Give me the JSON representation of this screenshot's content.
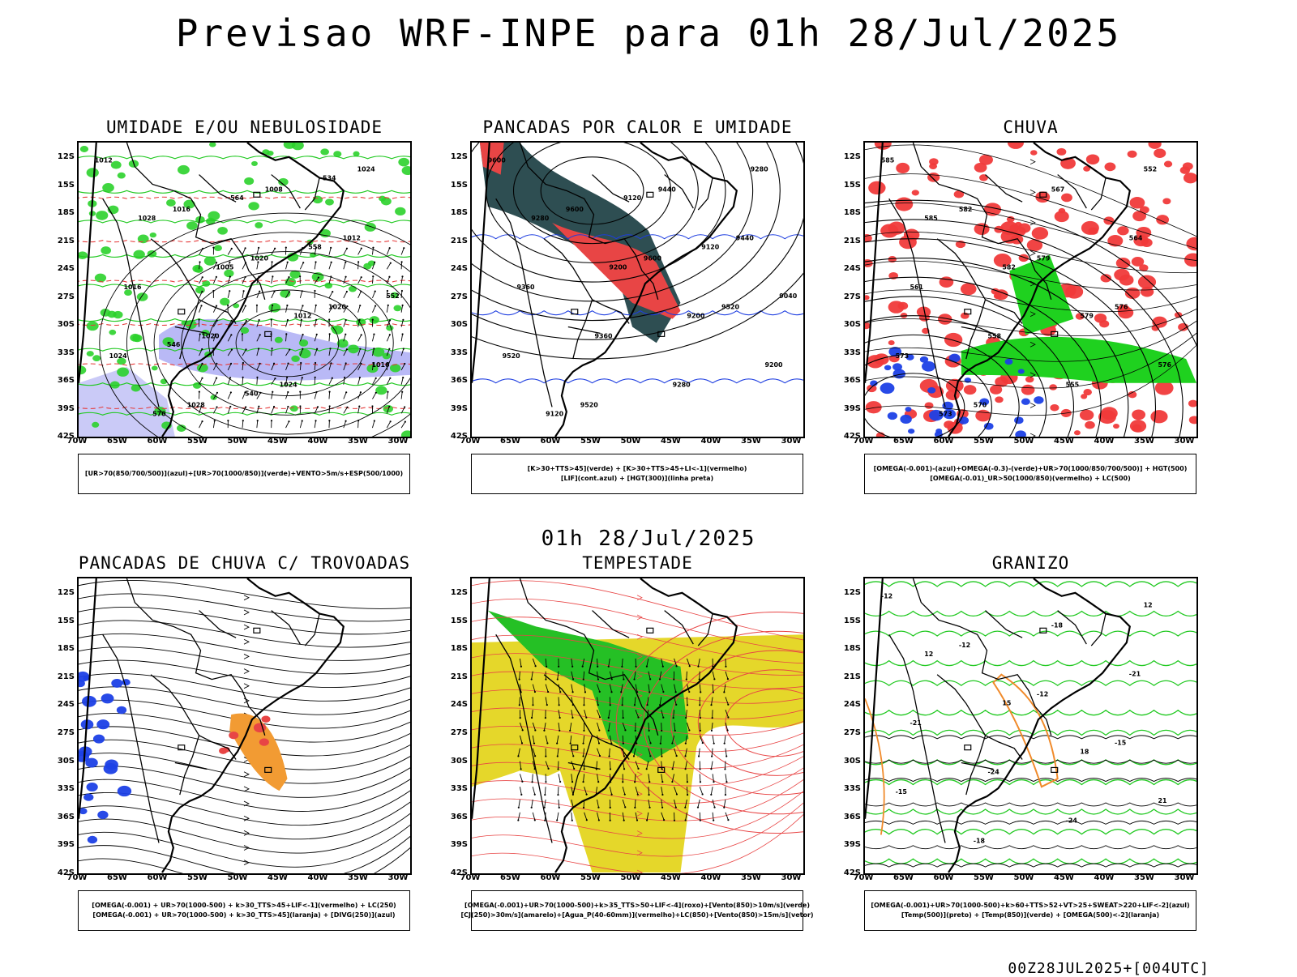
{
  "page": {
    "title": "Previsao WRF-INPE  para 01h 28/Jul/2025",
    "mid_date": "01h 28/Jul/2025",
    "footer": "00Z28JUL2025+[004UTC]"
  },
  "axes": {
    "lat_labels": [
      "12S",
      "15S",
      "18S",
      "21S",
      "24S",
      "27S",
      "30S",
      "33S",
      "36S",
      "39S",
      "42S"
    ],
    "lon_labels": [
      "70W",
      "65W",
      "60W",
      "55W",
      "50W",
      "45W",
      "40W",
      "35W",
      "30W"
    ]
  },
  "panels": [
    {
      "title": "UMIDADE E/OU NEBULOSIDADE",
      "legend": [
        "[UR>70(850/700/500)](azul)+[UR>70(1000/850)](verde)+VENTO>5m/s+ESP(500/1000)"
      ],
      "contour_labels": [
        "1012",
        "1016",
        "1020",
        "1020",
        "1024",
        "1028",
        "1008",
        "1012",
        "1016",
        "1020",
        "1024",
        "1024",
        "1028",
        "1005",
        "1012",
        "1016",
        "570",
        "564",
        "558",
        "552",
        "546",
        "540",
        "534"
      ]
    },
    {
      "title": "PANCADAS POR CALOR E UMIDADE",
      "legend": [
        "[K>30+TTS>45](verde) + [K>30+TTS>45+LI<-1](vermelho)",
        "[LIF](cont.azul) + [HGT(300)](linha preta)"
      ],
      "contour_labels": [
        "9600",
        "9600",
        "9600",
        "9520",
        "9520",
        "9520",
        "9440",
        "9440",
        "9360",
        "9360",
        "9280",
        "9280",
        "9280",
        "9200",
        "9200",
        "9200",
        "9120",
        "9120",
        "9120",
        "9040"
      ]
    },
    {
      "title": "CHUVA",
      "legend": [
        "[OMEGA(-0.001)-(azul)+OMEGA(-0.3)-(verde)+UR>70(1000/850/700/500)] + HGT(500)",
        "[OMEGA(-0.01)_UR>50(1000/850)(vermelho) + LC(500)"
      ],
      "contour_labels": [
        "585",
        "582",
        "579",
        "576",
        "573",
        "570",
        "567",
        "564",
        "561",
        "558",
        "555",
        "552",
        "585",
        "582",
        "579",
        "576",
        "573"
      ]
    },
    {
      "title": "PANCADAS DE CHUVA C/ TROVOADAS",
      "legend": [
        "[OMEGA(-0.001) + UR>70(1000-500) + k>30_TTS>45+LIF<-1](vermelho) + LC(250)",
        "[OMEGA(-0.001) + UR>70(1000-500) + k>30_TTS>45](laranja) + [DIVG(250)](azul)"
      ],
      "contour_labels": []
    },
    {
      "title": "TEMPESTADE",
      "legend": [
        "[OMEGA(-0.001)+UR>70(1000-500)+k>35_TTS>50+LIF<-4](roxo)+[Vento(850)>10m/s](verde)",
        "[CJ(250)>30m/s](amarelo)+[Agua_P(40-60mm)](vermelho)+LC(850)+[Vento(850)>15m/s](vetor)"
      ],
      "contour_labels": []
    },
    {
      "title": "GRANIZO",
      "legend": [
        "[OMEGA(-0.001)+UR>70(1000-500)+k>60+TTS>52+VT>25+SWEAT>220+LIF<-2](azul)",
        "[Temp(500)](preto) + [Temp(850)](verde) + [OMEGA(500)<-2](laranja)"
      ],
      "contour_labels": [
        "-12",
        "-12",
        "-12",
        "-15",
        "-15",
        "-18",
        "-18",
        "-21",
        "-21",
        "-24",
        "-24",
        "12",
        "12",
        "15",
        "18",
        "21"
      ]
    }
  ]
}
